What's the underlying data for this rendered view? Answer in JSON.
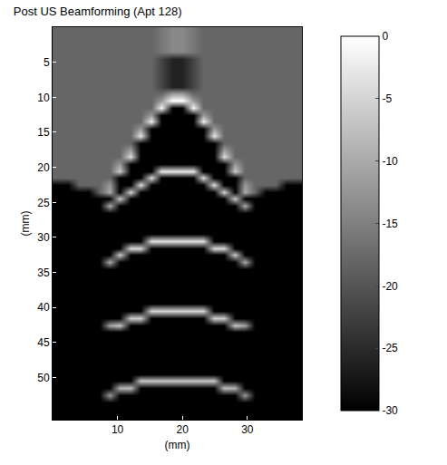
{
  "chart_data": {
    "type": "heatmap",
    "title": "Post US Beamforming (Apt 128)",
    "x_label": "(mm)",
    "y_label": "(mm)",
    "color": "gray",
    "grid": false,
    "xlim": [
      0,
      38.4
    ],
    "ylim": [
      56,
      0
    ],
    "xticks": [
      10,
      20,
      30
    ],
    "yticks": [
      5,
      10,
      15,
      20,
      25,
      30,
      35,
      40,
      45,
      50
    ],
    "colorbar_range": [
      -30,
      0
    ],
    "colorbar_ticks": [
      0,
      -5,
      -10,
      -15,
      -20,
      -25,
      -30
    ],
    "x": [
      0.8,
      2.4,
      4.0,
      5.6,
      7.2,
      8.8,
      10.4,
      12.0,
      13.6,
      15.2,
      16.8,
      18.4,
      20.0,
      21.6,
      23.2,
      24.8,
      26.4,
      28.0,
      29.6,
      31.2,
      32.8,
      34.4,
      36.0,
      37.6
    ],
    "y": [
      0.5,
      1.5,
      2.5,
      3.5,
      4.5,
      5.5,
      6.5,
      7.5,
      8.5,
      9.5,
      10.5,
      11.5,
      12.5,
      13.5,
      14.5,
      15.5,
      16.5,
      17.5,
      18.5,
      19.5,
      20.5,
      21.5,
      22.5,
      23.5,
      24.5,
      25.5,
      26.5,
      27.5,
      28.5,
      29.5,
      30.5,
      31.5,
      32.5,
      33.5,
      34.5,
      35.5,
      36.5,
      37.5,
      38.5,
      39.5,
      40.5,
      41.5,
      42.5,
      43.5,
      44.5,
      45.5,
      46.5,
      47.5,
      48.5,
      49.5,
      50.5,
      51.5,
      52.5,
      53.5,
      54.5,
      55.5
    ],
    "z": [
      [
        -18,
        -18,
        -18,
        -18,
        -18,
        -18,
        -18,
        -18,
        -18,
        -18,
        -16,
        -14,
        -14,
        -16,
        -18,
        -18,
        -18,
        -18,
        -18,
        -18,
        -18,
        -18,
        -18,
        -18
      ],
      [
        -18,
        -18,
        -18,
        -18,
        -18,
        -18,
        -18,
        -18,
        -18,
        -18,
        -16,
        -14,
        -14,
        -16,
        -18,
        -18,
        -18,
        -18,
        -18,
        -18,
        -18,
        -18,
        -18,
        -18
      ],
      [
        -18,
        -18,
        -18,
        -18,
        -18,
        -18,
        -18,
        -18,
        -18,
        -18,
        -16,
        -14,
        -14,
        -16,
        -18,
        -18,
        -18,
        -18,
        -18,
        -18,
        -18,
        -18,
        -18,
        -18
      ],
      [
        -18,
        -18,
        -18,
        -18,
        -18,
        -18,
        -18,
        -18,
        -18,
        -18,
        -16,
        -14,
        -14,
        -16,
        -18,
        -18,
        -18,
        -18,
        -18,
        -18,
        -18,
        -18,
        -18,
        -18
      ],
      [
        -18,
        -18,
        -18,
        -18,
        -18,
        -18,
        -18,
        -18,
        -18,
        -18,
        -22,
        -26,
        -26,
        -22,
        -18,
        -18,
        -18,
        -18,
        -18,
        -18,
        -18,
        -18,
        -18,
        -18
      ],
      [
        -18,
        -18,
        -18,
        -18,
        -18,
        -18,
        -18,
        -18,
        -18,
        -18,
        -22,
        -26,
        -26,
        -22,
        -18,
        -18,
        -18,
        -18,
        -18,
        -18,
        -18,
        -18,
        -18,
        -18
      ],
      [
        -18,
        -18,
        -18,
        -18,
        -18,
        -18,
        -18,
        -18,
        -18,
        -18,
        -22,
        -26,
        -26,
        -22,
        -18,
        -18,
        -18,
        -18,
        -18,
        -18,
        -18,
        -18,
        -18,
        -18
      ],
      [
        -18,
        -18,
        -18,
        -18,
        -18,
        -18,
        -18,
        -18,
        -18,
        -18,
        -22,
        -26,
        -26,
        -22,
        -18,
        -18,
        -18,
        -18,
        -18,
        -18,
        -18,
        -18,
        -18,
        -18
      ],
      [
        -18,
        -18,
        -18,
        -18,
        -18,
        -18,
        -18,
        -18,
        -18,
        -18,
        -22,
        -26,
        -26,
        -22,
        -18,
        -18,
        -18,
        -18,
        -18,
        -18,
        -18,
        -18,
        -18,
        -18
      ],
      [
        -18,
        -18,
        -18,
        -18,
        -18,
        -18,
        -18,
        -18,
        -18,
        -18,
        -18,
        -12,
        -12,
        -18,
        -18,
        -18,
        -18,
        -18,
        -18,
        -18,
        -18,
        -18,
        -18,
        -18
      ],
      [
        -18,
        -18,
        -18,
        -18,
        -18,
        -18,
        -18,
        -18,
        -18,
        -18,
        -12,
        0,
        0,
        -12,
        -18,
        -18,
        -18,
        -18,
        -18,
        -18,
        -18,
        -18,
        -18,
        -18
      ],
      [
        -18,
        -18,
        -18,
        -18,
        -18,
        -18,
        -18,
        -18,
        -18,
        -18,
        -1,
        -30,
        -30,
        -1,
        -18,
        -18,
        -18,
        -18,
        -18,
        -18,
        -18,
        -18,
        -18,
        -18
      ],
      [
        -18,
        -18,
        -18,
        -18,
        -18,
        -18,
        -18,
        -18,
        -18,
        -12,
        -30,
        -30,
        -30,
        -30,
        -12,
        -18,
        -18,
        -18,
        -18,
        -18,
        -18,
        -18,
        -18,
        -18
      ],
      [
        -18,
        -18,
        -18,
        -18,
        -18,
        -18,
        -18,
        -18,
        -18,
        -2,
        -30,
        -30,
        -30,
        -30,
        -2,
        -18,
        -18,
        -18,
        -18,
        -18,
        -18,
        -18,
        -18,
        -18
      ],
      [
        -18,
        -18,
        -18,
        -18,
        -18,
        -18,
        -18,
        -18,
        -12,
        -30,
        -30,
        -30,
        -30,
        -30,
        -30,
        -12,
        -18,
        -18,
        -18,
        -18,
        -18,
        -18,
        -18,
        -18
      ],
      [
        -18,
        -18,
        -18,
        -18,
        -18,
        -18,
        -18,
        -18,
        -3,
        -30,
        -30,
        -30,
        -30,
        -30,
        -30,
        -3,
        -18,
        -18,
        -18,
        -18,
        -18,
        -18,
        -18,
        -18
      ],
      [
        -18,
        -18,
        -18,
        -18,
        -18,
        -18,
        -18,
        -18,
        -30,
        -30,
        -30,
        -30,
        -30,
        -30,
        -30,
        -30,
        -18,
        -18,
        -18,
        -18,
        -18,
        -18,
        -18,
        -18
      ],
      [
        -18,
        -18,
        -18,
        -18,
        -18,
        -18,
        -18,
        -12,
        -30,
        -30,
        -30,
        -30,
        -30,
        -30,
        -30,
        -30,
        -12,
        -18,
        -18,
        -18,
        -18,
        -18,
        -18,
        -18
      ],
      [
        -18,
        -18,
        -18,
        -18,
        -18,
        -18,
        -18,
        -4,
        -30,
        -30,
        -30,
        -30,
        -30,
        -30,
        -30,
        -30,
        -4,
        -18,
        -18,
        -18,
        -18,
        -18,
        -18,
        -18
      ],
      [
        -18,
        -18,
        -18,
        -18,
        -18,
        -18,
        -12,
        -30,
        -30,
        -30,
        -30,
        -30,
        -30,
        -30,
        -30,
        -30,
        -30,
        -12,
        -18,
        -18,
        -18,
        -18,
        -18,
        -18
      ],
      [
        -18,
        -18,
        -18,
        -18,
        -18,
        -18,
        -6,
        -30,
        -30,
        -30,
        -3,
        -3,
        -3,
        -3,
        -30,
        -30,
        -30,
        -6,
        -18,
        -18,
        -18,
        -18,
        -18,
        -18
      ],
      [
        -18,
        -18,
        -18,
        -18,
        -18,
        -18,
        -30,
        -30,
        -30,
        -4,
        -30,
        -30,
        -30,
        -30,
        -4,
        -30,
        -30,
        -30,
        -18,
        -18,
        -18,
        -18,
        -18,
        -18
      ],
      [
        -30,
        -30,
        -18,
        -18,
        -18,
        -12,
        -30,
        -30,
        -4,
        -30,
        -30,
        -30,
        -30,
        -30,
        -30,
        -4,
        -30,
        -30,
        -12,
        -18,
        -18,
        -18,
        -30,
        -30
      ],
      [
        -30,
        -30,
        -30,
        -30,
        -18,
        -10,
        -30,
        -5,
        -30,
        -30,
        -30,
        -30,
        -30,
        -30,
        -30,
        -30,
        -5,
        -30,
        -10,
        -18,
        -30,
        -30,
        -30,
        -30
      ],
      [
        -30,
        -30,
        -30,
        -30,
        -30,
        -30,
        -6,
        -30,
        -30,
        -30,
        -30,
        -30,
        -30,
        -30,
        -30,
        -30,
        -30,
        -6,
        -30,
        -30,
        -30,
        -30,
        -30,
        -30
      ],
      [
        -30,
        -30,
        -30,
        -30,
        -30,
        -10,
        -30,
        -30,
        -30,
        -30,
        -30,
        -30,
        -30,
        -30,
        -30,
        -30,
        -30,
        -30,
        -10,
        -30,
        -30,
        -30,
        -30,
        -30
      ],
      [
        -30,
        -30,
        -30,
        -30,
        -30,
        -30,
        -30,
        -30,
        -30,
        -30,
        -30,
        -30,
        -30,
        -30,
        -30,
        -30,
        -30,
        -30,
        -30,
        -30,
        -30,
        -30,
        -30,
        -30
      ],
      [
        -30,
        -30,
        -30,
        -30,
        -30,
        -30,
        -30,
        -30,
        -30,
        -30,
        -30,
        -30,
        -30,
        -30,
        -30,
        -30,
        -30,
        -30,
        -30,
        -30,
        -30,
        -30,
        -30,
        -30
      ],
      [
        -30,
        -30,
        -30,
        -30,
        -30,
        -30,
        -30,
        -30,
        -30,
        -30,
        -30,
        -30,
        -30,
        -30,
        -30,
        -30,
        -30,
        -30,
        -30,
        -30,
        -30,
        -30,
        -30,
        -30
      ],
      [
        -30,
        -30,
        -30,
        -30,
        -30,
        -30,
        -30,
        -30,
        -30,
        -30,
        -30,
        -30,
        -30,
        -30,
        -30,
        -30,
        -30,
        -30,
        -30,
        -30,
        -30,
        -30,
        -30,
        -30
      ],
      [
        -30,
        -30,
        -30,
        -30,
        -30,
        -30,
        -30,
        -30,
        -30,
        -4,
        -4,
        -4,
        -4,
        -4,
        -4,
        -30,
        -30,
        -30,
        -30,
        -30,
        -30,
        -30,
        -30,
        -30
      ],
      [
        -30,
        -30,
        -30,
        -30,
        -30,
        -30,
        -30,
        -5,
        -5,
        -30,
        -30,
        -30,
        -30,
        -30,
        -30,
        -5,
        -5,
        -30,
        -30,
        -30,
        -30,
        -30,
        -30,
        -30
      ],
      [
        -30,
        -30,
        -30,
        -30,
        -30,
        -30,
        -6,
        -30,
        -30,
        -30,
        -30,
        -30,
        -30,
        -30,
        -30,
        -30,
        -30,
        -6,
        -30,
        -30,
        -30,
        -30,
        -30,
        -30
      ],
      [
        -30,
        -30,
        -30,
        -30,
        -30,
        -10,
        -30,
        -30,
        -30,
        -30,
        -30,
        -30,
        -30,
        -30,
        -30,
        -30,
        -30,
        -30,
        -10,
        -30,
        -30,
        -30,
        -30,
        -30
      ],
      [
        -30,
        -30,
        -30,
        -30,
        -30,
        -30,
        -30,
        -30,
        -30,
        -30,
        -30,
        -30,
        -30,
        -30,
        -30,
        -30,
        -30,
        -30,
        -30,
        -30,
        -30,
        -30,
        -30,
        -30
      ],
      [
        -30,
        -30,
        -30,
        -30,
        -30,
        -30,
        -30,
        -30,
        -30,
        -30,
        -30,
        -30,
        -30,
        -30,
        -30,
        -30,
        -30,
        -30,
        -30,
        -30,
        -30,
        -30,
        -30,
        -30
      ],
      [
        -30,
        -30,
        -30,
        -30,
        -30,
        -30,
        -30,
        -30,
        -30,
        -30,
        -30,
        -30,
        -30,
        -30,
        -30,
        -30,
        -30,
        -30,
        -30,
        -30,
        -30,
        -30,
        -30,
        -30
      ],
      [
        -30,
        -30,
        -30,
        -30,
        -30,
        -30,
        -30,
        -30,
        -30,
        -30,
        -30,
        -30,
        -30,
        -30,
        -30,
        -30,
        -30,
        -30,
        -30,
        -30,
        -30,
        -30,
        -30,
        -30
      ],
      [
        -30,
        -30,
        -30,
        -30,
        -30,
        -30,
        -30,
        -30,
        -30,
        -30,
        -30,
        -30,
        -30,
        -30,
        -30,
        -30,
        -30,
        -30,
        -30,
        -30,
        -30,
        -30,
        -30,
        -30
      ],
      [
        -30,
        -30,
        -30,
        -30,
        -30,
        -30,
        -30,
        -30,
        -30,
        -30,
        -30,
        -30,
        -30,
        -30,
        -30,
        -30,
        -30,
        -30,
        -30,
        -30,
        -30,
        -30,
        -30,
        -30
      ],
      [
        -30,
        -30,
        -30,
        -30,
        -30,
        -30,
        -30,
        -30,
        -30,
        -5,
        -5,
        -5,
        -5,
        -5,
        -5,
        -30,
        -30,
        -30,
        -30,
        -30,
        -30,
        -30,
        -30,
        -30
      ],
      [
        -30,
        -30,
        -30,
        -30,
        -30,
        -30,
        -30,
        -6,
        -6,
        -30,
        -30,
        -30,
        -30,
        -30,
        -30,
        -6,
        -6,
        -30,
        -30,
        -30,
        -30,
        -30,
        -30,
        -30
      ],
      [
        -30,
        -30,
        -30,
        -30,
        -30,
        -11,
        -7,
        -30,
        -30,
        -30,
        -30,
        -30,
        -30,
        -30,
        -30,
        -30,
        -30,
        -7,
        -11,
        -30,
        -30,
        -30,
        -30,
        -30
      ],
      [
        -30,
        -30,
        -30,
        -30,
        -30,
        -30,
        -30,
        -30,
        -30,
        -30,
        -30,
        -30,
        -30,
        -30,
        -30,
        -30,
        -30,
        -30,
        -30,
        -30,
        -30,
        -30,
        -30,
        -30
      ],
      [
        -30,
        -30,
        -30,
        -30,
        -30,
        -30,
        -30,
        -30,
        -30,
        -30,
        -30,
        -30,
        -30,
        -30,
        -30,
        -30,
        -30,
        -30,
        -30,
        -30,
        -30,
        -30,
        -30,
        -30
      ],
      [
        -30,
        -30,
        -30,
        -30,
        -30,
        -30,
        -30,
        -30,
        -30,
        -30,
        -30,
        -30,
        -30,
        -30,
        -30,
        -30,
        -30,
        -30,
        -30,
        -30,
        -30,
        -30,
        -30,
        -30
      ],
      [
        -30,
        -30,
        -30,
        -30,
        -30,
        -30,
        -30,
        -30,
        -30,
        -30,
        -30,
        -30,
        -30,
        -30,
        -30,
        -30,
        -30,
        -30,
        -30,
        -30,
        -30,
        -30,
        -30,
        -30
      ],
      [
        -30,
        -30,
        -30,
        -30,
        -30,
        -30,
        -30,
        -30,
        -30,
        -30,
        -30,
        -30,
        -30,
        -30,
        -30,
        -30,
        -30,
        -30,
        -30,
        -30,
        -30,
        -30,
        -30,
        -30
      ],
      [
        -30,
        -30,
        -30,
        -30,
        -30,
        -30,
        -30,
        -30,
        -30,
        -30,
        -30,
        -30,
        -30,
        -30,
        -30,
        -30,
        -30,
        -30,
        -30,
        -30,
        -30,
        -30,
        -30,
        -30
      ],
      [
        -30,
        -30,
        -30,
        -30,
        -30,
        -30,
        -30,
        -30,
        -30,
        -30,
        -30,
        -30,
        -30,
        -30,
        -30,
        -30,
        -30,
        -30,
        -30,
        -30,
        -30,
        -30,
        -30,
        -30
      ],
      [
        -30,
        -30,
        -30,
        -30,
        -30,
        -30,
        -30,
        -30,
        -7,
        -7,
        -7,
        -7,
        -7,
        -7,
        -7,
        -7,
        -30,
        -30,
        -30,
        -30,
        -30,
        -30,
        -30,
        -30
      ],
      [
        -30,
        -30,
        -30,
        -30,
        -30,
        -30,
        -9,
        -8,
        -30,
        -30,
        -30,
        -30,
        -30,
        -30,
        -30,
        -30,
        -8,
        -9,
        -30,
        -30,
        -30,
        -30,
        -30,
        -30
      ],
      [
        -30,
        -30,
        -30,
        -30,
        -30,
        -12,
        -30,
        -30,
        -30,
        -30,
        -30,
        -30,
        -30,
        -30,
        -30,
        -30,
        -30,
        -30,
        -12,
        -30,
        -30,
        -30,
        -30,
        -30
      ],
      [
        -30,
        -30,
        -30,
        -30,
        -30,
        -30,
        -30,
        -30,
        -30,
        -30,
        -30,
        -30,
        -30,
        -30,
        -30,
        -30,
        -30,
        -30,
        -30,
        -30,
        -30,
        -30,
        -30,
        -30
      ],
      [
        -30,
        -30,
        -30,
        -30,
        -30,
        -30,
        -30,
        -30,
        -30,
        -30,
        -30,
        -30,
        -30,
        -30,
        -30,
        -30,
        -30,
        -30,
        -30,
        -30,
        -30,
        -30,
        -30,
        -30
      ],
      [
        -30,
        -30,
        -30,
        -30,
        -30,
        -30,
        -30,
        -30,
        -30,
        -30,
        -30,
        -30,
        -30,
        -30,
        -30,
        -30,
        -30,
        -30,
        -30,
        -30,
        -30,
        -30,
        -30,
        -30
      ]
    ]
  }
}
